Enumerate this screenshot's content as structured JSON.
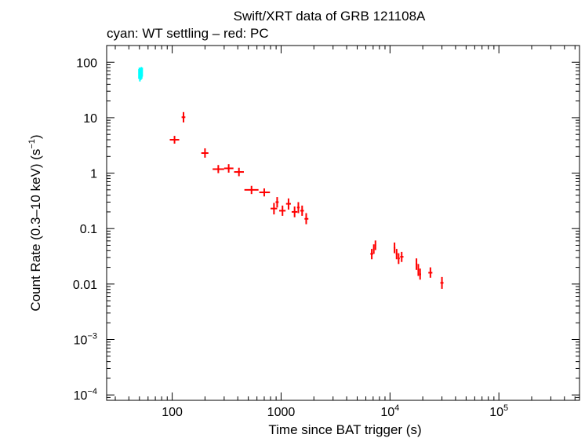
{
  "chart_data": {
    "type": "scatter",
    "title": "Swift/XRT data of GRB 121108A",
    "subtitle": "cyan: WT settling – red: PC",
    "xlabel": "Time since BAT trigger (s)",
    "ylabel_parts": [
      "Count Rate (0.3–10 keV) (s",
      "−1",
      ")"
    ],
    "xscale": "log",
    "yscale": "log",
    "xlim": [
      25,
      550000
    ],
    "ylim": [
      8e-05,
      200
    ],
    "x_ticks": [
      {
        "value": 100,
        "base": "100",
        "exp": ""
      },
      {
        "value": 1000,
        "base": "1000",
        "exp": ""
      },
      {
        "value": 10000,
        "base": "10",
        "exp": "4"
      },
      {
        "value": 100000,
        "base": "10",
        "exp": "5"
      }
    ],
    "y_ticks": [
      {
        "value": 100,
        "base": "100",
        "exp": ""
      },
      {
        "value": 10,
        "base": "10",
        "exp": ""
      },
      {
        "value": 1,
        "base": "1",
        "exp": ""
      },
      {
        "value": 0.1,
        "base": "0.1",
        "exp": ""
      },
      {
        "value": 0.01,
        "base": "0.01",
        "exp": ""
      },
      {
        "value": 0.001,
        "base": "10",
        "exp": "−3"
      },
      {
        "value": 0.0001,
        "base": "10",
        "exp": "−4"
      }
    ],
    "series": [
      {
        "color": "#00ffff",
        "points": [
          {
            "x": 49.5,
            "y": 62,
            "xlo": 49.2,
            "xhi": 49.8,
            "ylo": 50,
            "yhi": 75
          },
          {
            "x": 50.0,
            "y": 68,
            "xlo": 49.7,
            "xhi": 50.3,
            "ylo": 55,
            "yhi": 80
          },
          {
            "x": 50.5,
            "y": 58,
            "xlo": 50.2,
            "xhi": 50.8,
            "ylo": 45,
            "yhi": 72
          },
          {
            "x": 51.0,
            "y": 65,
            "xlo": 50.7,
            "xhi": 51.3,
            "ylo": 52,
            "yhi": 78
          },
          {
            "x": 51.5,
            "y": 60,
            "xlo": 51.2,
            "xhi": 51.8,
            "ylo": 48,
            "yhi": 74
          },
          {
            "x": 52.0,
            "y": 70,
            "xlo": 51.7,
            "xhi": 52.3,
            "ylo": 58,
            "yhi": 82
          },
          {
            "x": 52.5,
            "y": 63,
            "xlo": 52.2,
            "xhi": 52.8,
            "ylo": 50,
            "yhi": 76
          },
          {
            "x": 53.0,
            "y": 67,
            "xlo": 52.7,
            "xhi": 53.3,
            "ylo": 55,
            "yhi": 80
          }
        ]
      },
      {
        "color": "#ff0000",
        "points": [
          {
            "x": 105,
            "y": 4.0,
            "xlo": 95,
            "xhi": 116,
            "ylo": 3.4,
            "yhi": 4.7
          },
          {
            "x": 127,
            "y": 10.2,
            "xlo": 122,
            "xhi": 132,
            "ylo": 8.2,
            "yhi": 12.6
          },
          {
            "x": 200,
            "y": 2.3,
            "xlo": 185,
            "xhi": 215,
            "ylo": 1.9,
            "yhi": 2.8
          },
          {
            "x": 265,
            "y": 1.18,
            "xlo": 235,
            "xhi": 300,
            "ylo": 1.0,
            "yhi": 1.4
          },
          {
            "x": 330,
            "y": 1.22,
            "xlo": 300,
            "xhi": 365,
            "ylo": 1.02,
            "yhi": 1.45
          },
          {
            "x": 410,
            "y": 1.05,
            "xlo": 370,
            "xhi": 455,
            "ylo": 0.88,
            "yhi": 1.25
          },
          {
            "x": 535,
            "y": 0.5,
            "xlo": 460,
            "xhi": 620,
            "ylo": 0.42,
            "yhi": 0.59
          },
          {
            "x": 700,
            "y": 0.45,
            "xlo": 630,
            "xhi": 790,
            "ylo": 0.38,
            "yhi": 0.53
          },
          {
            "x": 860,
            "y": 0.23,
            "xlo": 800,
            "xhi": 920,
            "ylo": 0.18,
            "yhi": 0.29
          },
          {
            "x": 920,
            "y": 0.3,
            "xlo": 890,
            "xhi": 950,
            "ylo": 0.24,
            "yhi": 0.37
          },
          {
            "x": 1030,
            "y": 0.21,
            "xlo": 960,
            "xhi": 1100,
            "ylo": 0.17,
            "yhi": 0.26
          },
          {
            "x": 1170,
            "y": 0.28,
            "xlo": 1110,
            "xhi": 1230,
            "ylo": 0.22,
            "yhi": 0.35
          },
          {
            "x": 1330,
            "y": 0.2,
            "xlo": 1250,
            "xhi": 1410,
            "ylo": 0.16,
            "yhi": 0.25
          },
          {
            "x": 1440,
            "y": 0.24,
            "xlo": 1400,
            "xhi": 1480,
            "ylo": 0.19,
            "yhi": 0.3
          },
          {
            "x": 1560,
            "y": 0.21,
            "xlo": 1500,
            "xhi": 1620,
            "ylo": 0.17,
            "yhi": 0.26
          },
          {
            "x": 1700,
            "y": 0.15,
            "xlo": 1640,
            "xhi": 1780,
            "ylo": 0.12,
            "yhi": 0.19
          },
          {
            "x": 6800,
            "y": 0.035,
            "xlo": 6600,
            "xhi": 7000,
            "ylo": 0.028,
            "yhi": 0.043
          },
          {
            "x": 7100,
            "y": 0.043,
            "xlo": 7000,
            "xhi": 7200,
            "ylo": 0.035,
            "yhi": 0.052
          },
          {
            "x": 7350,
            "y": 0.05,
            "xlo": 7250,
            "xhi": 7450,
            "ylo": 0.041,
            "yhi": 0.061
          },
          {
            "x": 11000,
            "y": 0.045,
            "xlo": 10800,
            "xhi": 11200,
            "ylo": 0.036,
            "yhi": 0.056
          },
          {
            "x": 11500,
            "y": 0.035,
            "xlo": 11300,
            "xhi": 11700,
            "ylo": 0.028,
            "yhi": 0.043
          },
          {
            "x": 12000,
            "y": 0.029,
            "xlo": 11800,
            "xhi": 12300,
            "ylo": 0.023,
            "yhi": 0.036
          },
          {
            "x": 12800,
            "y": 0.031,
            "xlo": 12400,
            "xhi": 13300,
            "ylo": 0.025,
            "yhi": 0.038
          },
          {
            "x": 17500,
            "y": 0.023,
            "xlo": 17200,
            "xhi": 17800,
            "ylo": 0.018,
            "yhi": 0.029
          },
          {
            "x": 18200,
            "y": 0.018,
            "xlo": 17900,
            "xhi": 18500,
            "ylo": 0.014,
            "yhi": 0.023
          },
          {
            "x": 18900,
            "y": 0.015,
            "xlo": 18600,
            "xhi": 19300,
            "ylo": 0.012,
            "yhi": 0.019
          },
          {
            "x": 23500,
            "y": 0.016,
            "xlo": 22500,
            "xhi": 24500,
            "ylo": 0.013,
            "yhi": 0.02
          },
          {
            "x": 30000,
            "y": 0.0105,
            "xlo": 29000,
            "xhi": 31000,
            "ylo": 0.0082,
            "yhi": 0.0134
          }
        ]
      }
    ]
  }
}
